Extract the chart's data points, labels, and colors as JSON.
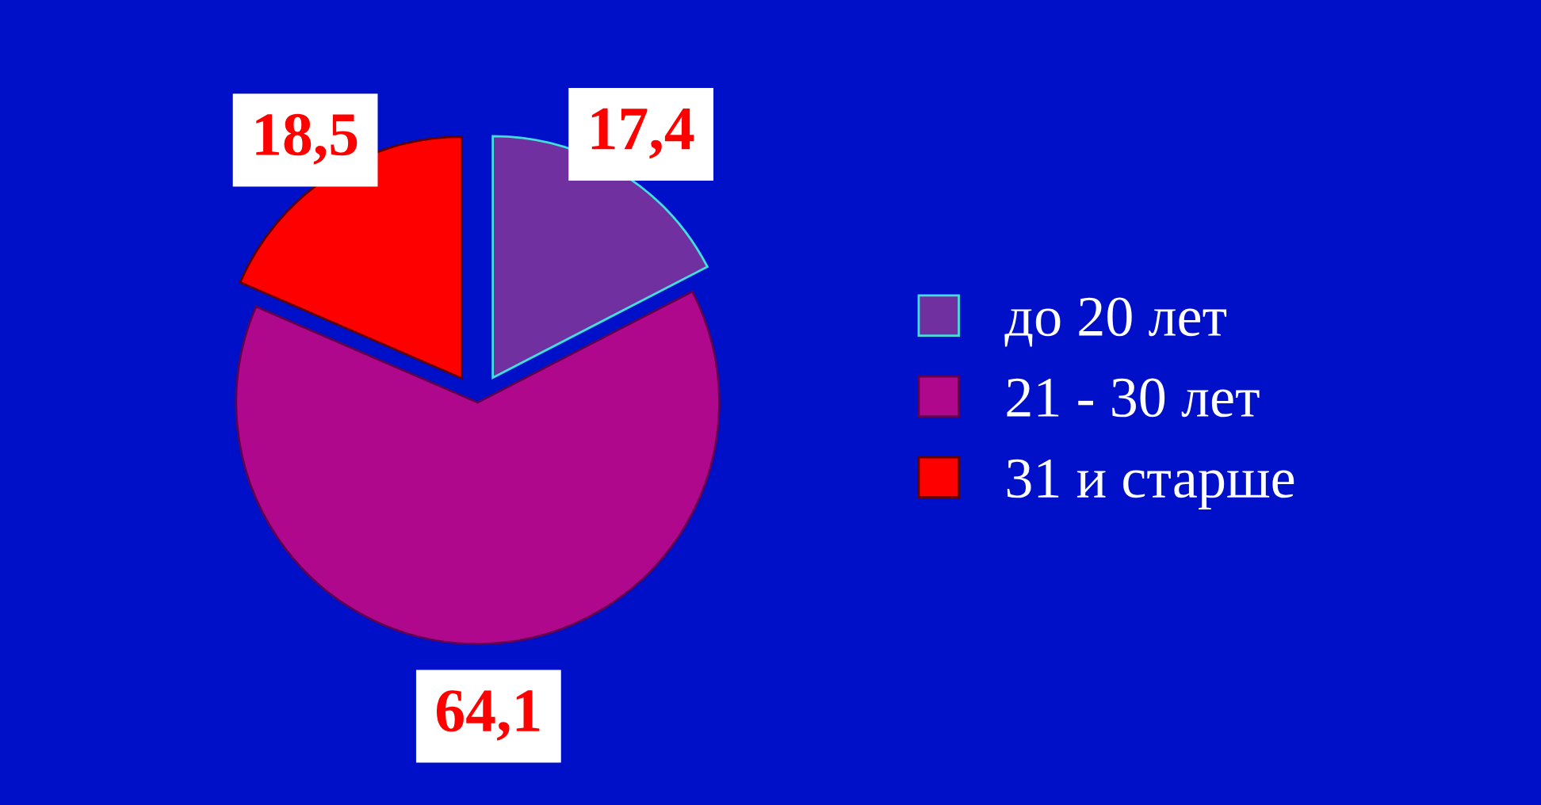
{
  "chart_data": {
    "type": "pie",
    "categories": [
      "до 20 лет",
      "21 - 30 лет",
      "31 и старше"
    ],
    "values": [
      17.4,
      64.1,
      18.5
    ],
    "value_labels": [
      "17,4",
      "64,1",
      "18,5"
    ],
    "colors": [
      "#7030a0",
      "#b0088c",
      "#ff0000"
    ],
    "legend": "right"
  }
}
